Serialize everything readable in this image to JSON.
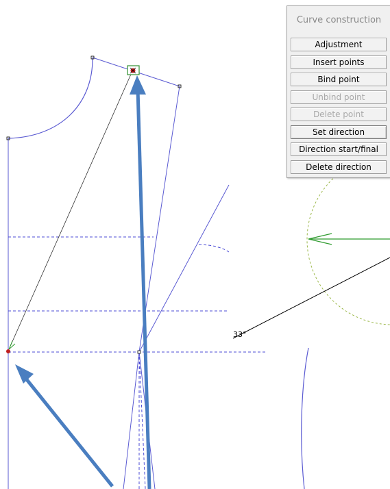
{
  "panel": {
    "title": "Curve construction",
    "buttons": [
      {
        "label": "Adjustment",
        "enabled": true
      },
      {
        "label": "Insert points",
        "enabled": true
      },
      {
        "label": "Bind point",
        "enabled": true
      },
      {
        "label": "Unbind point",
        "enabled": false
      },
      {
        "label": "Delete point",
        "enabled": false
      },
      {
        "label": "Set direction",
        "enabled": true,
        "selected": true
      },
      {
        "label": "Direction start/final",
        "enabled": true
      },
      {
        "label": "Delete direction",
        "enabled": true
      }
    ]
  },
  "canvas": {
    "angle_label": "33°"
  },
  "colors": {
    "pattern_line": "#5a5ad2",
    "dashed_guide": "#4b4bd6",
    "annotation_arrow": "#4a7ec0",
    "direction_arrow": "#2f9b2f",
    "dotted_circle": "#9cb84a",
    "selected_point": "#2f8f2f"
  }
}
